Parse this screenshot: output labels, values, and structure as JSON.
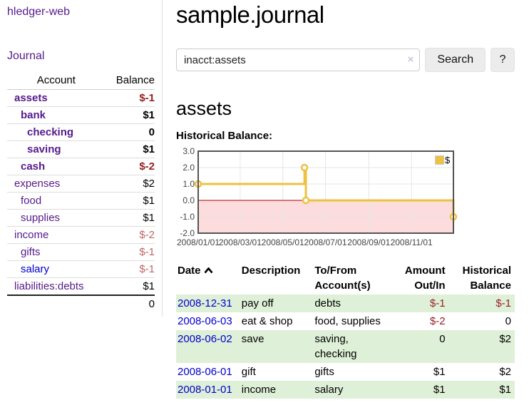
{
  "app": {
    "brand": "hledger-web",
    "nav_journal": "Journal"
  },
  "sidebar": {
    "headers": {
      "account": "Account",
      "balance": "Balance"
    },
    "accounts": [
      {
        "name": "assets",
        "indent": 0,
        "bold": true,
        "link": "purple",
        "balance": "$-1",
        "balance_color": "neg-strong"
      },
      {
        "name": "bank",
        "indent": 1,
        "bold": true,
        "link": "purple",
        "balance": "$1",
        "balance_color": "black"
      },
      {
        "name": "checking",
        "indent": 2,
        "bold": true,
        "link": "purple",
        "balance": "0",
        "balance_color": "black"
      },
      {
        "name": "saving",
        "indent": 2,
        "bold": true,
        "link": "purple",
        "balance": "$1",
        "balance_color": "black"
      },
      {
        "name": "cash",
        "indent": 1,
        "bold": true,
        "link": "purple",
        "balance": "$-2",
        "balance_color": "neg-strong"
      },
      {
        "name": "expenses",
        "indent": 0,
        "bold": false,
        "link": "purple",
        "balance": "$2",
        "balance_color": "black"
      },
      {
        "name": "food",
        "indent": 1,
        "bold": false,
        "link": "purple",
        "balance": "$1",
        "balance_color": "black"
      },
      {
        "name": "supplies",
        "indent": 1,
        "bold": false,
        "link": "purple",
        "balance": "$1",
        "balance_color": "black"
      },
      {
        "name": "income",
        "indent": 0,
        "bold": false,
        "link": "purple",
        "balance": "$-2",
        "balance_color": "neg-soft"
      },
      {
        "name": "gifts",
        "indent": 1,
        "bold": false,
        "link": "purple",
        "balance": "$-1",
        "balance_color": "neg-soft"
      },
      {
        "name": "salary",
        "indent": 1,
        "bold": false,
        "link": "blue",
        "balance": "$-1",
        "balance_color": "neg-soft"
      },
      {
        "name": "liabilities:debts",
        "indent": 0,
        "bold": false,
        "link": "purple",
        "balance": "$1",
        "balance_color": "black"
      }
    ],
    "total": "0"
  },
  "header": {
    "title": "sample.journal"
  },
  "search": {
    "value": "inacct:assets",
    "clear_icon": "×",
    "button_label": "Search",
    "help_label": "?"
  },
  "account_page": {
    "heading": "assets"
  },
  "chart_data": {
    "type": "line",
    "step": true,
    "title": "Historical Balance:",
    "series": [
      {
        "name": "$",
        "color": "#edc240",
        "points": [
          [
            "2008-01-01",
            1
          ],
          [
            "2008-06-01",
            2
          ],
          [
            "2008-06-03",
            0
          ],
          [
            "2008-12-31",
            -1
          ]
        ]
      }
    ],
    "x_range": [
      "2008-01-01",
      "2008-12-31"
    ],
    "ylim": [
      -2,
      3
    ],
    "y_ticks": [
      3,
      2,
      1,
      0,
      -1,
      -2
    ],
    "x_ticks": [
      "2008/01/01",
      "2008/03/01",
      "2008/05/01",
      "2008/07/01",
      "2008/09/01",
      "2008/11/01"
    ],
    "grid": true,
    "legend_position": "top-right",
    "colors": {
      "grid": "#e6e6e6",
      "border": "#545454",
      "zero_line": "#aa0000",
      "negative_region": "#fcdcdc",
      "point_fill": "#ffffff",
      "tick_text": "#444444"
    }
  },
  "register_table": {
    "columns": [
      "Date",
      "Description",
      "To/From Account(s)",
      "Amount Out/In",
      "Historical Balance"
    ],
    "sort_icon": "chevron-up",
    "rows": [
      {
        "date": "2008-12-31",
        "description": "pay off",
        "accounts": "debts",
        "amount": "$-1",
        "amount_neg": true,
        "balance": "$-1",
        "balance_neg": true
      },
      {
        "date": "2008-06-03",
        "description": "eat & shop",
        "accounts": "food, supplies",
        "amount": "$-2",
        "amount_neg": true,
        "balance": "0",
        "balance_neg": false
      },
      {
        "date": "2008-06-02",
        "description": "save",
        "accounts": "saving, checking",
        "amount": "0",
        "amount_neg": false,
        "balance": "$2",
        "balance_neg": false
      },
      {
        "date": "2008-06-01",
        "description": "gift",
        "accounts": "gifts",
        "amount": "$1",
        "amount_neg": false,
        "balance": "$2",
        "balance_neg": false
      },
      {
        "date": "2008-01-01",
        "description": "income",
        "accounts": "salary",
        "amount": "$1",
        "amount_neg": false,
        "balance": "$1",
        "balance_neg": false
      }
    ]
  }
}
